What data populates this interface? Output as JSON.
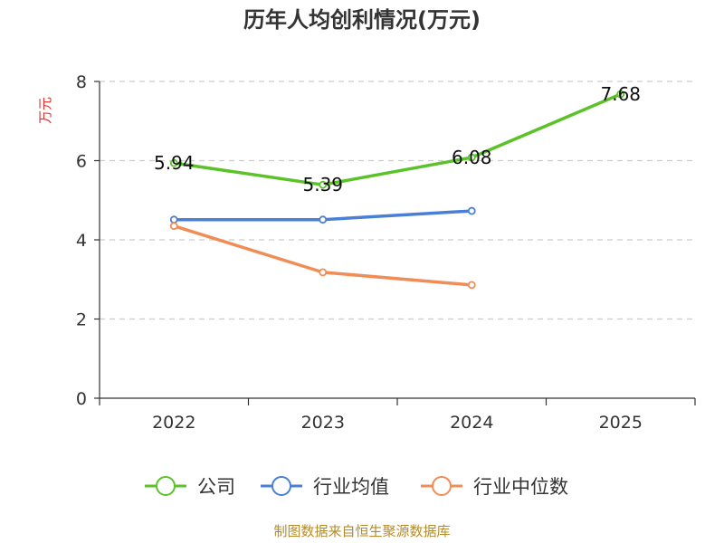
{
  "chart_data": {
    "type": "line",
    "title": "历年人均创利情况(万元)",
    "ylabel": "万元",
    "xlabel": "",
    "categories": [
      "2022",
      "2023",
      "2024",
      "2025"
    ],
    "ylim": [
      0,
      8
    ],
    "yticks": [
      0,
      2,
      4,
      6,
      8
    ],
    "grid": true,
    "legend_position": "bottom",
    "series": [
      {
        "name": "公司",
        "color": "#5bc22a",
        "values": [
          5.94,
          5.39,
          6.08,
          7.68
        ],
        "show_labels": true,
        "labels": [
          "5.94",
          "5.39",
          "6.08",
          "7.68"
        ]
      },
      {
        "name": "行业均值",
        "color": "#4a7fd6",
        "values": [
          4.51,
          4.51,
          4.73,
          null
        ],
        "show_labels": false
      },
      {
        "name": "行业中位数",
        "color": "#f08c55",
        "values": [
          4.35,
          3.18,
          2.86,
          null
        ],
        "show_labels": false
      }
    ]
  },
  "source_text": "制图数据来自恒生聚源数据库"
}
